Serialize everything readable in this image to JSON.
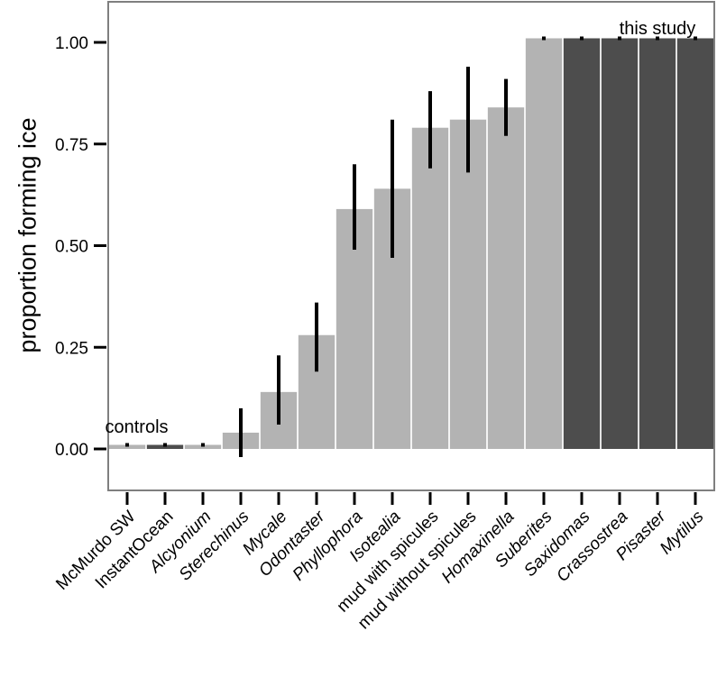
{
  "chart_data": {
    "type": "bar",
    "ylabel": "proportion forming ice",
    "xlabel": "",
    "ylim": [
      -0.1,
      1.1
    ],
    "yticks": [
      "0.00",
      "0.25",
      "0.50",
      "0.75",
      "1.00"
    ],
    "grid": false,
    "annotations": [
      "controls",
      "this study"
    ],
    "colors": {
      "light": "#b3b3b3",
      "dark": "#4d4d4d",
      "error": "#000000",
      "frame": "#7f7f7f"
    },
    "bars": [
      {
        "label": "McMurdo SW",
        "italic": false,
        "value": 0.01,
        "lo": 0.01,
        "hi": 0.01,
        "shade": "light"
      },
      {
        "label": "InstantOcean",
        "italic": false,
        "value": 0.01,
        "lo": 0.01,
        "hi": 0.01,
        "shade": "dark"
      },
      {
        "label": "Alcyonium",
        "italic": true,
        "value": 0.01,
        "lo": 0.01,
        "hi": 0.01,
        "shade": "light"
      },
      {
        "label": "Sterechinus",
        "italic": true,
        "value": 0.04,
        "lo": -0.02,
        "hi": 0.1,
        "shade": "light"
      },
      {
        "label": "Mycale",
        "italic": true,
        "value": 0.14,
        "lo": 0.06,
        "hi": 0.23,
        "shade": "light"
      },
      {
        "label": "Odontaster",
        "italic": true,
        "value": 0.28,
        "lo": 0.19,
        "hi": 0.36,
        "shade": "light"
      },
      {
        "label": "Phyllophora",
        "italic": true,
        "value": 0.59,
        "lo": 0.49,
        "hi": 0.7,
        "shade": "light"
      },
      {
        "label": "Isotealia",
        "italic": true,
        "value": 0.64,
        "lo": 0.47,
        "hi": 0.81,
        "shade": "light"
      },
      {
        "label": "mud with spicules",
        "italic": false,
        "value": 0.79,
        "lo": 0.69,
        "hi": 0.88,
        "shade": "light"
      },
      {
        "label": "mud without spicules",
        "italic": false,
        "value": 0.81,
        "lo": 0.68,
        "hi": 0.94,
        "shade": "light"
      },
      {
        "label": "Homaxinella",
        "italic": true,
        "value": 0.84,
        "lo": 0.77,
        "hi": 0.91,
        "shade": "light"
      },
      {
        "label": "Suberites",
        "italic": true,
        "value": 1.01,
        "lo": 1.01,
        "hi": 1.01,
        "shade": "light"
      },
      {
        "label": "Saxidomas",
        "italic": true,
        "value": 1.01,
        "lo": 1.01,
        "hi": 1.01,
        "shade": "dark"
      },
      {
        "label": "Crassostrea",
        "italic": true,
        "value": 1.01,
        "lo": 1.01,
        "hi": 1.01,
        "shade": "dark"
      },
      {
        "label": "Pisaster",
        "italic": true,
        "value": 1.01,
        "lo": 1.01,
        "hi": 1.01,
        "shade": "dark"
      },
      {
        "label": "Mytilus",
        "italic": true,
        "value": 1.01,
        "lo": 1.01,
        "hi": 1.01,
        "shade": "dark"
      }
    ]
  }
}
